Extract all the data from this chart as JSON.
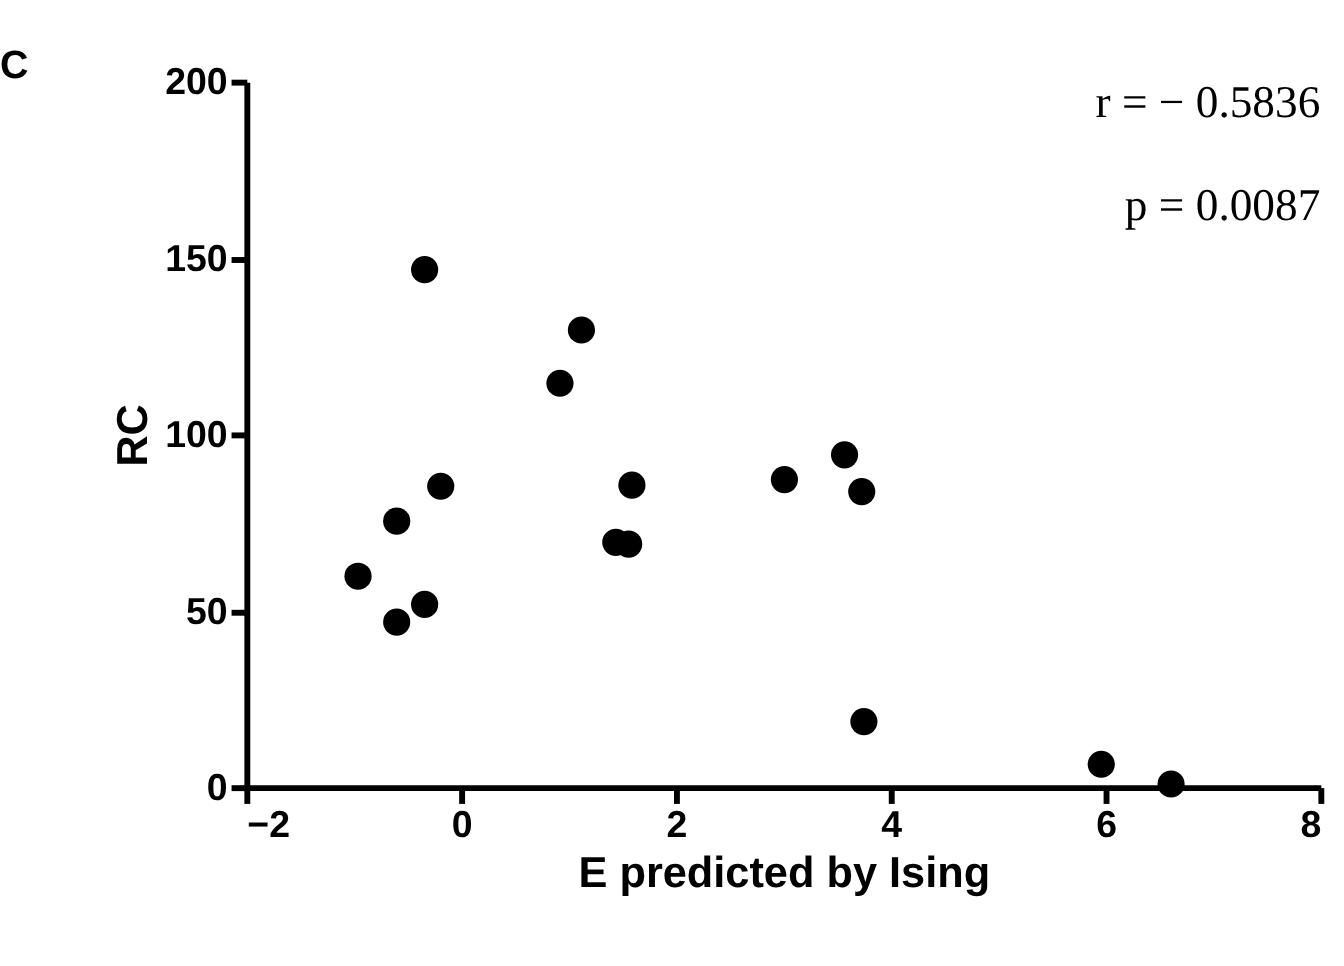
{
  "chart_data": {
    "type": "scatter",
    "xlabel": "E predicted by Ising",
    "ylabel": "RC",
    "x": [
      -0.34,
      1.12,
      0.92,
      -0.19,
      1.59,
      3.01,
      -0.6,
      1.44,
      1.56,
      -0.96,
      -0.34,
      -0.6,
      3.57,
      3.73,
      3.75,
      5.96,
      6.61
    ],
    "values": [
      146.7,
      129.6,
      114.5,
      85.3,
      85.6,
      87.2,
      75.4,
      69.4,
      68.9,
      59.8,
      51.8,
      46.8,
      94.2,
      83.8,
      18.6,
      6.5,
      0.9
    ],
    "color": "#000000",
    "marker": "circle",
    "xlim": [
      -2,
      8
    ],
    "xticks": [
      -2,
      0,
      2,
      4,
      6,
      8
    ],
    "ylim": [
      0,
      200
    ],
    "yticks": [
      0,
      50,
      100,
      150,
      200
    ],
    "grid": false,
    "legend": false,
    "annotations": [
      "C",
      "r = − 0.5836",
      "p = 0.0087"
    ]
  }
}
